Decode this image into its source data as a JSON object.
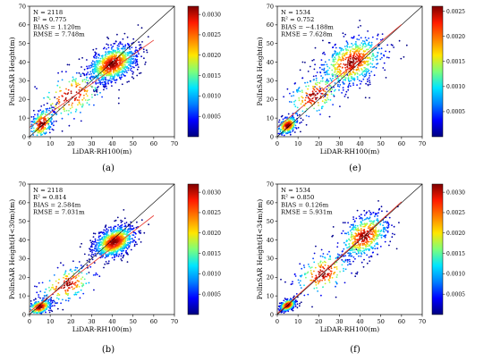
{
  "colors": {
    "identity_line": "#000000",
    "fit_line": "#e8352c",
    "colormap": [
      "#00007f",
      "#0000ff",
      "#0080ff",
      "#00e5ff",
      "#7dff7a",
      "#ffe600",
      "#ff8000",
      "#ff1a00",
      "#7f0000"
    ]
  },
  "chart_data": [
    {
      "type": "scatter",
      "panel_label": "(a)",
      "xlabel": "LiDAR-RH100(m)",
      "ylabel": "PolInSAR Height(m)",
      "xlim": [
        0,
        70
      ],
      "ylim": [
        0,
        70
      ],
      "x_ticks": [
        "0",
        "10",
        "20",
        "30",
        "40",
        "50",
        "60",
        "70"
      ],
      "y_ticks": [
        "0",
        "10",
        "20",
        "30",
        "40",
        "50",
        "60",
        "70"
      ],
      "colorbar": {
        "range": [
          0,
          0.0032
        ],
        "ticks": [
          "0.0030",
          "0.0025",
          "0.0020",
          "0.0015",
          "0.0010",
          "0.0005"
        ],
        "tick_values": [
          0.003,
          0.0025,
          0.002,
          0.0015,
          0.001,
          0.0005
        ]
      },
      "stats": [
        "N = 2118",
        "R² = 0.775",
        "BIAS = 1.120m",
        "RMSE = 7.748m"
      ],
      "fit_line": {
        "slope": 0.78,
        "intercept": 5.0,
        "x_range": [
          0,
          60
        ]
      },
      "clusters": [
        {
          "center": [
            40,
            39
          ],
          "spread": [
            6,
            6
          ],
          "count": 950,
          "seed": 11
        },
        {
          "center": [
            6,
            7
          ],
          "spread": [
            3,
            5
          ],
          "count": 260,
          "seed": 12
        },
        {
          "center": [
            20,
            22
          ],
          "spread": [
            9,
            8
          ],
          "count": 180,
          "seed": 13
        }
      ]
    },
    {
      "type": "scatter",
      "panel_label": "(e)",
      "xlabel": "LiDAR-RH100(m)",
      "ylabel": "PolInSAR Height(m)",
      "xlim": [
        0,
        70
      ],
      "ylim": [
        0,
        70
      ],
      "x_ticks": [
        "0",
        "10",
        "20",
        "30",
        "40",
        "50",
        "60",
        "70"
      ],
      "y_ticks": [
        "0",
        "10",
        "20",
        "30",
        "40",
        "50",
        "60",
        "70"
      ],
      "colorbar": {
        "range": [
          0,
          0.0026
        ],
        "ticks": [
          "0.0025",
          "0.0020",
          "0.0015",
          "0.0010",
          "0.0005"
        ],
        "tick_values": [
          0.0025,
          0.002,
          0.0015,
          0.001,
          0.0005
        ]
      },
      "stats": [
        "N = 1534",
        "R² = 0.752",
        "BIAS = −4.188m",
        "RMSE = 7.628m"
      ],
      "fit_line": {
        "slope": 0.92,
        "intercept": 5.0,
        "x_range": [
          0,
          60
        ]
      },
      "clusters": [
        {
          "center": [
            5,
            6
          ],
          "spread": [
            2.5,
            3
          ],
          "count": 300,
          "seed": 21
        },
        {
          "center": [
            36,
            40
          ],
          "spread": [
            8,
            8
          ],
          "count": 650,
          "seed": 22
        },
        {
          "center": [
            18,
            22
          ],
          "spread": [
            7,
            7
          ],
          "count": 200,
          "seed": 23
        }
      ]
    },
    {
      "type": "scatter",
      "panel_label": "(b)",
      "xlabel": "LiDAR-RH100(m)",
      "ylabel": "PolInSAR Height(H<30m)(m)",
      "xlim": [
        0,
        70
      ],
      "ylim": [
        0,
        70
      ],
      "x_ticks": [
        "0",
        "10",
        "20",
        "30",
        "40",
        "50",
        "60",
        "70"
      ],
      "y_ticks": [
        "0",
        "10",
        "20",
        "30",
        "40",
        "50",
        "60",
        "70"
      ],
      "colorbar": {
        "range": [
          0,
          0.0032
        ],
        "ticks": [
          "0.0030",
          "0.0025",
          "0.0020",
          "0.0015",
          "0.0010",
          "0.0005"
        ],
        "tick_values": [
          0.003,
          0.0025,
          0.002,
          0.0015,
          0.001,
          0.0005
        ]
      },
      "stats": [
        "N = 2118",
        "R² = 0.814",
        "BIAS = 2.584m",
        "RMSE = 7.031m"
      ],
      "fit_line": {
        "slope": 0.86,
        "intercept": 1.5,
        "x_range": [
          0,
          60
        ]
      },
      "clusters": [
        {
          "center": [
            41,
            39
          ],
          "spread": [
            5,
            5
          ],
          "count": 950,
          "seed": 31
        },
        {
          "center": [
            5,
            4
          ],
          "spread": [
            3,
            2.5
          ],
          "count": 280,
          "seed": 32
        },
        {
          "center": [
            18,
            16
          ],
          "spread": [
            7,
            6
          ],
          "count": 180,
          "seed": 33
        }
      ]
    },
    {
      "type": "scatter",
      "panel_label": "(f)",
      "xlabel": "LiDAR-RH100(m)",
      "ylabel": "PolInSAR Height(H<34m)(m)",
      "xlim": [
        0,
        70
      ],
      "ylim": [
        0,
        70
      ],
      "x_ticks": [
        "0",
        "10",
        "20",
        "30",
        "40",
        "50",
        "60",
        "70"
      ],
      "y_ticks": [
        "0",
        "10",
        "20",
        "30",
        "40",
        "50",
        "60",
        "70"
      ],
      "colorbar": {
        "range": [
          0,
          0.0032
        ],
        "ticks": [
          "0.0030",
          "0.0025",
          "0.0020",
          "0.0015",
          "0.0010",
          "0.0005"
        ],
        "tick_values": [
          0.003,
          0.0025,
          0.002,
          0.0015,
          0.001,
          0.0005
        ]
      },
      "stats": [
        "N = 1534",
        "R² = 0.850",
        "BIAS = 0.126m",
        "RMSE = 5.931m"
      ],
      "fit_line": {
        "slope": 1.0,
        "intercept": 0.5,
        "x_range": [
          0,
          60
        ]
      },
      "clusters": [
        {
          "center": [
            5,
            5
          ],
          "spread": [
            2,
            2
          ],
          "count": 320,
          "seed": 41
        },
        {
          "center": [
            42,
            42
          ],
          "spread": [
            6,
            7
          ],
          "count": 520,
          "seed": 42
        },
        {
          "center": [
            22,
            22
          ],
          "spread": [
            7,
            7
          ],
          "count": 200,
          "seed": 43
        }
      ]
    }
  ]
}
